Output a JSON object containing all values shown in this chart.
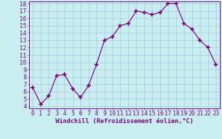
{
  "x": [
    0,
    1,
    2,
    3,
    4,
    5,
    6,
    7,
    8,
    9,
    10,
    11,
    12,
    13,
    14,
    15,
    16,
    17,
    18,
    19,
    20,
    21,
    22,
    23
  ],
  "y": [
    6.5,
    4.3,
    5.4,
    8.2,
    8.3,
    6.4,
    5.2,
    6.8,
    9.7,
    13.0,
    13.5,
    15.0,
    15.3,
    17.0,
    16.8,
    16.5,
    16.8,
    18.0,
    18.0,
    15.3,
    14.5,
    13.0,
    12.0,
    9.7
  ],
  "line_color": "#800080",
  "marker": "+",
  "marker_size": 4,
  "bg_color": "#c8eef0",
  "grid_color": "#9ebbe0",
  "ylim_min": 4,
  "ylim_max": 18,
  "xlim_min": -0.5,
  "xlim_max": 23.5,
  "yticks": [
    4,
    5,
    6,
    7,
    8,
    9,
    10,
    11,
    12,
    13,
    14,
    15,
    16,
    17,
    18
  ],
  "xticks": [
    0,
    1,
    2,
    3,
    4,
    5,
    6,
    7,
    8,
    9,
    10,
    11,
    12,
    13,
    14,
    15,
    16,
    17,
    18,
    19,
    20,
    21,
    22,
    23
  ],
  "tick_color": "#800080",
  "label_color": "#800080",
  "spine_color": "#800080",
  "xlabel": "Windchill (Refroidissement éolien,°C)",
  "font_size_tick": 6,
  "font_size_label": 6.5
}
